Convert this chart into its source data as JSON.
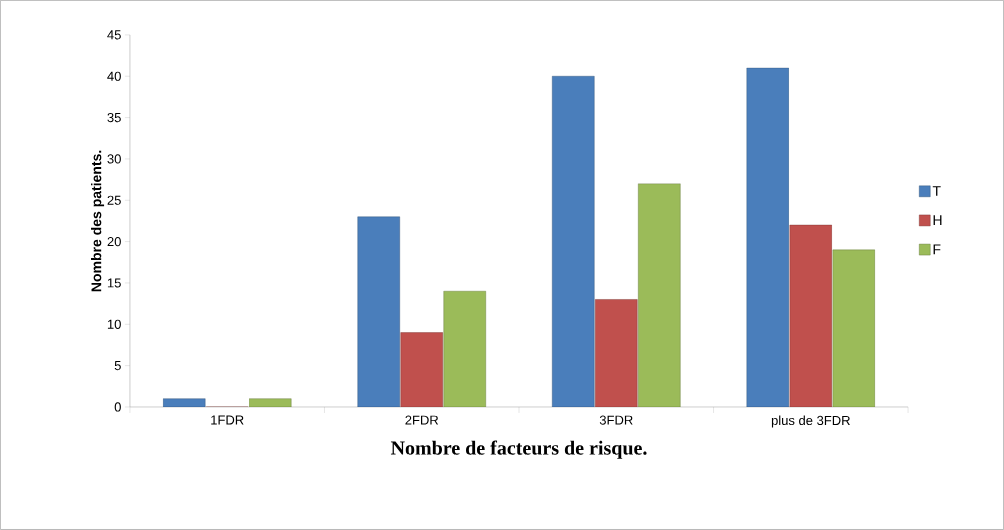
{
  "chart_data": {
    "type": "bar",
    "xlabel": "Nombre de facteurs de risque.",
    "ylabel": "Nombre des  patients.",
    "categories": [
      "1FDR",
      "2FDR",
      "3FDR",
      "plus de 3FDR"
    ],
    "series": [
      {
        "name": "T",
        "color": "#4a7ebb",
        "values": [
          1,
          23,
          40,
          41
        ]
      },
      {
        "name": "H",
        "color": "#c0504d",
        "values": [
          0,
          9,
          13,
          22
        ]
      },
      {
        "name": "F",
        "color": "#9bbb59",
        "values": [
          1,
          14,
          27,
          19
        ]
      }
    ],
    "ylim": [
      0,
      45
    ],
    "yticks": [
      0,
      5,
      10,
      15,
      20,
      25,
      30,
      35,
      40,
      45
    ],
    "legend": "right"
  }
}
